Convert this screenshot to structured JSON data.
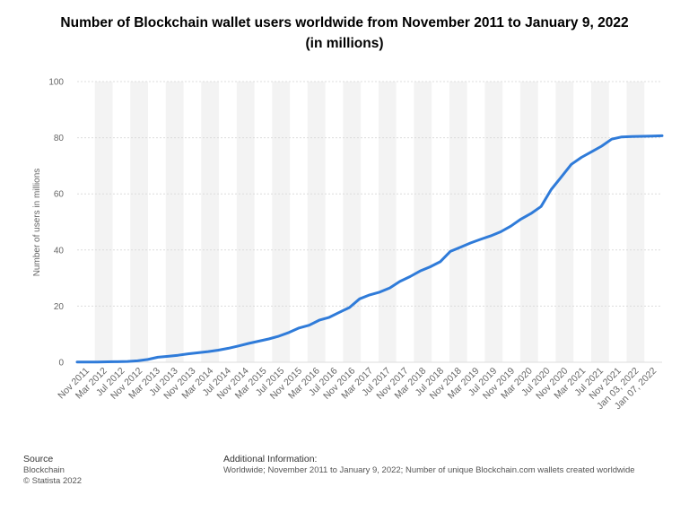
{
  "header": {
    "title_line1": "Number of Blockchain wallet users worldwide from November 2011 to January 9, 2022",
    "title_line2": "(in millions)"
  },
  "footer": {
    "source_heading": "Source",
    "source_name": "Blockchain",
    "copyright": "© Statista 2022",
    "info_heading": "Additional Information:",
    "info_text": "Worldwide; November 2011 to January 9, 2022; Number of unique Blockchain.com wallets created worldwide"
  },
  "colors": {
    "line": "#2f7bd9",
    "band": "#f3f3f3",
    "grid": "#dcdcdc",
    "axis_text": "#666666"
  },
  "chart_data": {
    "type": "line",
    "title": "Number of Blockchain wallet users worldwide from November 2011 to January 9, 2022 (in millions)",
    "xlabel": "",
    "ylabel": "Number of users in millions",
    "ylim": [
      0,
      100
    ],
    "yticks": [
      0,
      20,
      40,
      60,
      80,
      100
    ],
    "grid": true,
    "legend": "none",
    "x_tick_labels": [
      "Nov 2011",
      "Mar 2012",
      "Jul 2012",
      "Nov 2012",
      "Mar 2013",
      "Jul 2013",
      "Nov 2013",
      "Mar 2014",
      "Jul 2014",
      "Nov 2014",
      "Mar 2015",
      "Jul 2015",
      "Nov 2015",
      "Mar 2016",
      "Jul 2016",
      "Nov 2016",
      "Mar 2017",
      "Jul 2017",
      "Nov 2017",
      "Mar 2018",
      "Jul 2018",
      "Nov 2018",
      "Mar 2019",
      "Jul 2019",
      "Nov 2019",
      "Mar 2020",
      "Jul 2020",
      "Nov 2020",
      "Mar 2021",
      "Jul 2021",
      "Nov 2021",
      "Jan 03, 2022",
      "Jan 07, 2022"
    ],
    "series": [
      {
        "values": [
          0.1,
          0.1,
          0.1,
          0.15,
          0.2,
          0.3,
          0.5,
          1.0,
          1.8,
          2.1,
          2.5,
          3.0,
          3.4,
          3.8,
          4.3,
          5.0,
          5.8,
          6.7,
          7.5,
          8.3,
          9.3,
          10.6,
          12.2,
          13.2,
          15.0,
          16.0,
          17.8,
          19.5,
          22.6,
          24.0,
          25.0,
          26.5,
          28.8,
          30.5,
          32.5,
          34.0,
          35.8,
          39.5,
          41.0,
          42.5,
          43.8,
          45.0,
          46.5,
          48.5,
          51.0,
          53.0,
          55.5,
          61.5,
          66.0,
          70.5,
          73.0,
          75.0,
          77.0,
          79.5,
          80.3,
          80.4,
          80.5,
          80.6,
          80.7
        ]
      }
    ]
  }
}
